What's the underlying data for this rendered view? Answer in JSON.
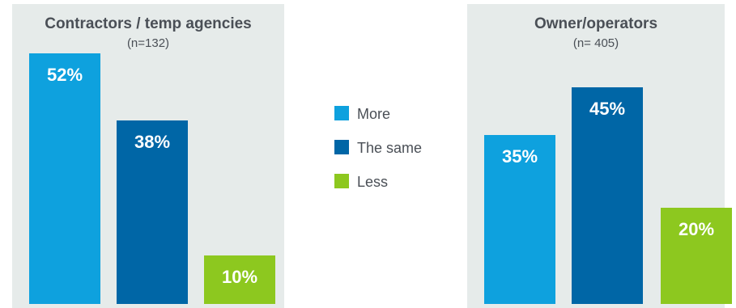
{
  "legend": [
    {
      "label": "More",
      "color": "#0ea1de"
    },
    {
      "label": "The same",
      "color": "#0066a6"
    },
    {
      "label": "Less",
      "color": "#8dc81f"
    }
  ],
  "chart_data": [
    {
      "type": "bar",
      "title": "Contractors / temp agencies",
      "subtitle": "(n=132)",
      "categories": [
        "More",
        "The same",
        "Less"
      ],
      "values": [
        52,
        38,
        10
      ],
      "value_labels": [
        "52%",
        "38%",
        "10%"
      ],
      "colors": [
        "#0ea1de",
        "#0066a6",
        "#8dc81f"
      ],
      "ylim": [
        0,
        52
      ]
    },
    {
      "type": "bar",
      "title": "Owner/operators",
      "subtitle": "(n= 405)",
      "categories": [
        "More",
        "The same",
        "Less"
      ],
      "values": [
        35,
        45,
        20
      ],
      "value_labels": [
        "35%",
        "45%",
        "20%"
      ],
      "colors": [
        "#0ea1de",
        "#0066a6",
        "#8dc81f"
      ],
      "ylim": [
        0,
        52
      ]
    }
  ]
}
